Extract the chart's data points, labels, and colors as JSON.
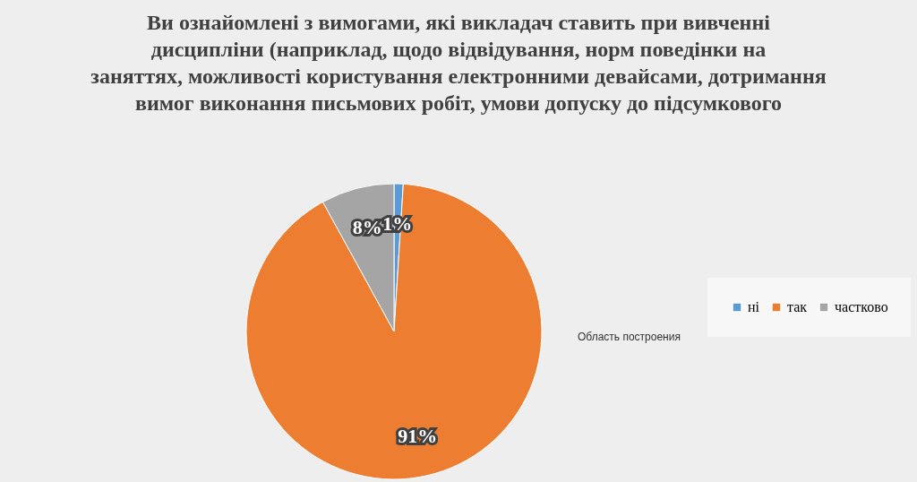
{
  "chart_data": {
    "type": "pie",
    "title": "Ви ознайомлені з вимогами, які викладач ставить при вивченні дисципліни (наприклад, щодо відвідування, норм поведінки на заняттях, можливості користування електронними девайсами, дотримання вимог виконання письмових робіт, умови допуску до підсумкового",
    "categories": [
      "ні",
      "так",
      "частково"
    ],
    "values": [
      1,
      91,
      8
    ],
    "colors": [
      "#5b9bd5",
      "#ed7d31",
      "#a5a5a5"
    ],
    "value_labels": [
      "1%",
      "91%",
      "8%"
    ],
    "legend": "right",
    "annotations": [
      "Область построения"
    ]
  }
}
